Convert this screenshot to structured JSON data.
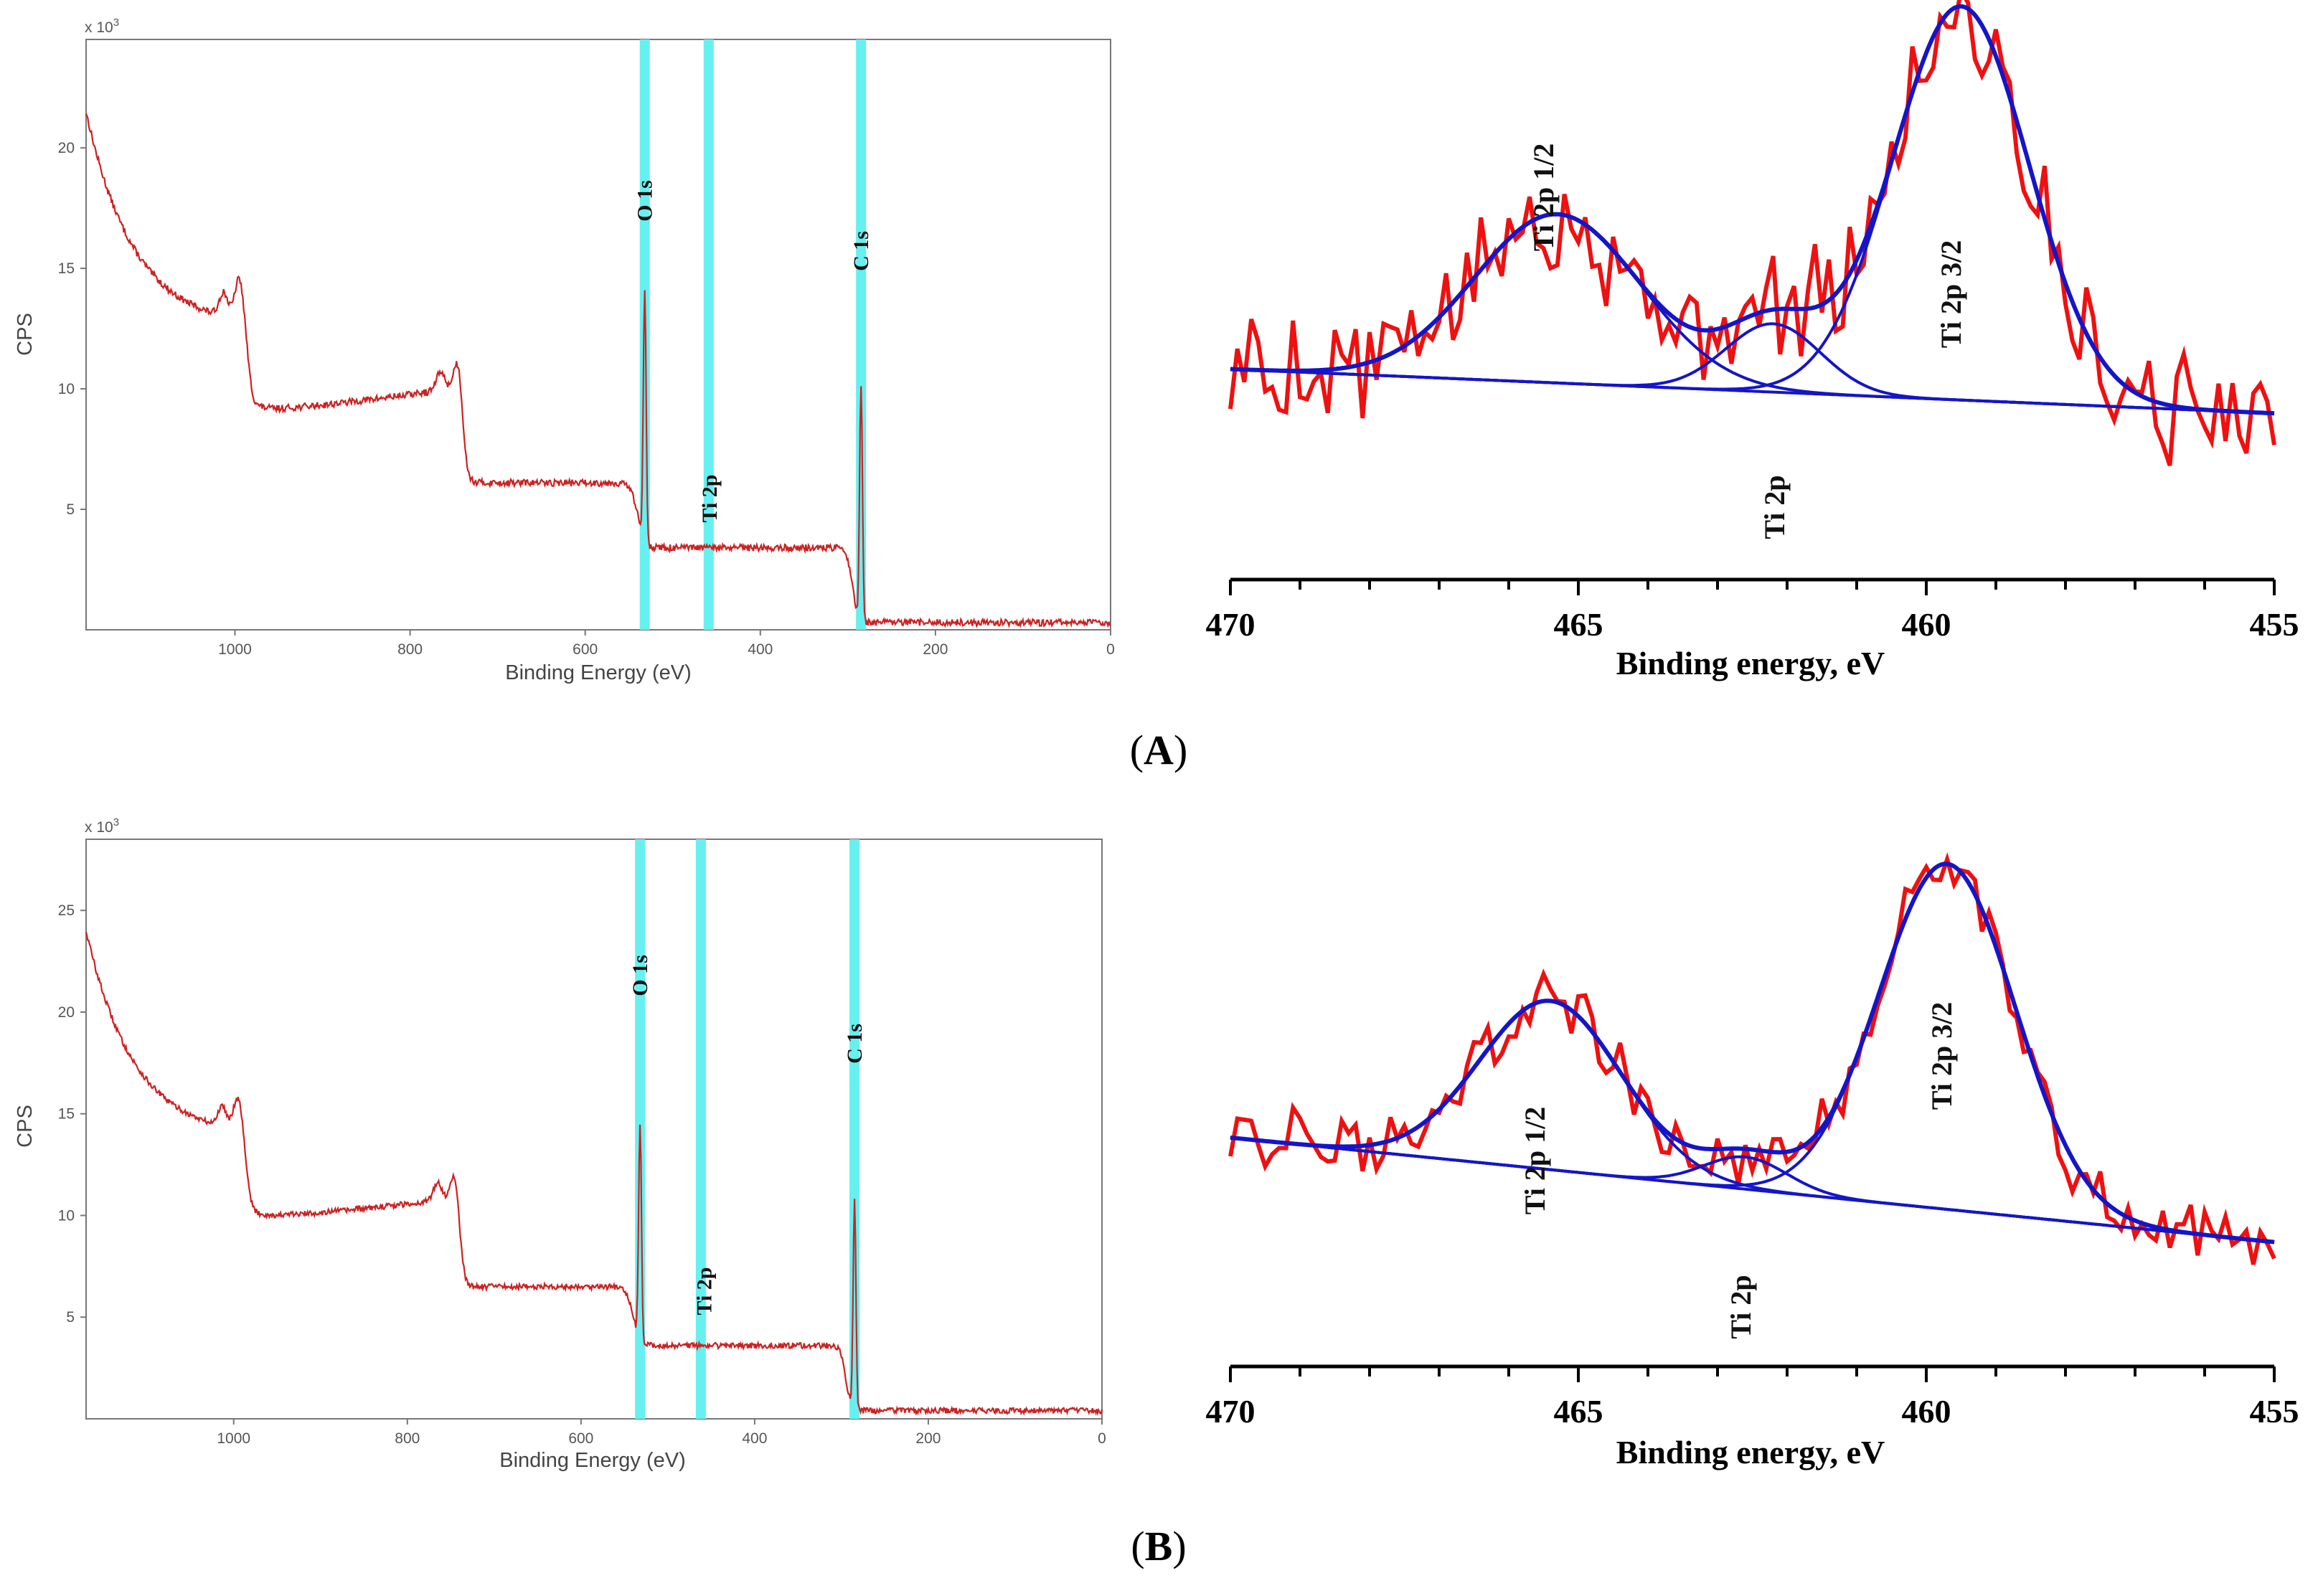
{
  "figure": {
    "panels": [
      {
        "letter": "A",
        "survey": {
          "type": "line",
          "ylabel": "CPS",
          "xlabel": "Binding Energy (eV)",
          "y_multiplier": "x 10",
          "y_multiplier_exp": "3",
          "xlim": [
            1170,
            0
          ],
          "ylim": [
            0,
            24.5
          ],
          "x_ticks": [
            "1000",
            "800",
            "600",
            "400",
            "200",
            "0"
          ],
          "x_tick_values": [
            1000,
            800,
            600,
            400,
            200,
            0
          ],
          "y_ticks": [
            "5",
            "10",
            "15",
            "20"
          ],
          "y_tick_values": [
            5,
            10,
            15,
            20
          ],
          "series_color": "#cc2222",
          "highlight_color": "#66f0f0",
          "highlights_ev": [
            532,
            459,
            285
          ],
          "peak_labels": [
            {
              "text": "O 1s",
              "ev": 532
            },
            {
              "text": "Ti 2p",
              "ev": 458
            },
            {
              "text": "C 1s",
              "ev": 285
            }
          ],
          "profile": {
            "start_level": 21.5,
            "plateau1_level": 12.5,
            "step1_ev": 985,
            "level2": 9.0,
            "rise_ev": 770,
            "step2_ev": 740,
            "level3": 6.1,
            "step3_ev": 560,
            "level4": 3.4,
            "step4_ev": 295,
            "level5": 0.3,
            "peaks": [
              {
                "ev": 1013,
                "h": 1.0
              },
              {
                "ev": 995,
                "h": 1.8
              },
              {
                "ev": 765,
                "h": 0.8
              },
              {
                "ev": 745,
                "h": 1.6
              },
              {
                "ev": 532,
                "h": 10.5
              },
              {
                "ev": 285,
                "h": 9.8
              }
            ]
          }
        },
        "highres": {
          "type": "line",
          "xlabel": "Binding energy, eV",
          "xlim": [
            470,
            455
          ],
          "x_ticks": [
            "470",
            "465",
            "460",
            "455"
          ],
          "x_tick_values": [
            470,
            465,
            460,
            455
          ],
          "measured_color": "#ee1111",
          "fit_color": "#1515c8",
          "peak_labels": [
            "Ti 2p 1/2",
            "Ti 2p",
            "Ti 2p 3/2"
          ],
          "components": [
            {
              "name": "Ti 2p 1/2",
              "center_ev": 465.3,
              "height": 0.42,
              "fwhm": 2.8
            },
            {
              "name": "Ti 2p",
              "center_ev": 462.2,
              "height": 0.17,
              "fwhm": 1.6
            },
            {
              "name": "Ti 2p 3/2",
              "center_ev": 459.5,
              "height": 0.98,
              "fwhm": 2.3
            }
          ],
          "baseline": {
            "left": 0.34,
            "right": 0.23
          },
          "noise_amplitude": 0.12
        }
      },
      {
        "letter": "B",
        "survey": {
          "type": "line",
          "ylabel": "CPS",
          "xlabel": "Binding Energy (eV)",
          "y_multiplier": "x 10",
          "y_multiplier_exp": "3",
          "xlim": [
            1170,
            0
          ],
          "ylim": [
            0,
            28.5
          ],
          "x_ticks": [
            "1000",
            "800",
            "600",
            "400",
            "200",
            "0"
          ],
          "x_tick_values": [
            1000,
            800,
            600,
            400,
            200,
            0
          ],
          "y_ticks": [
            "5",
            "10",
            "15",
            "20",
            "25"
          ],
          "y_tick_values": [
            5,
            10,
            15,
            20,
            25
          ],
          "series_color": "#cc2222",
          "highlight_color": "#66f0f0",
          "highlights_ev": [
            532,
            462,
            285
          ],
          "peak_labels": [
            {
              "text": "O 1s",
              "ev": 532
            },
            {
              "text": "Ti 2p",
              "ev": 458
            },
            {
              "text": "C 1s",
              "ev": 285
            }
          ],
          "profile": {
            "start_level": 24.0,
            "plateau1_level": 13.8,
            "step1_ev": 985,
            "level2": 9.8,
            "rise_ev": 770,
            "step2_ev": 740,
            "level3": 6.5,
            "step3_ev": 560,
            "level4": 3.6,
            "step4_ev": 295,
            "level5": 0.4,
            "peaks": [
              {
                "ev": 1013,
                "h": 1.0
              },
              {
                "ev": 995,
                "h": 1.7
              },
              {
                "ev": 765,
                "h": 0.9
              },
              {
                "ev": 745,
                "h": 1.7
              },
              {
                "ev": 532,
                "h": 10.6
              },
              {
                "ev": 285,
                "h": 10.2
              }
            ]
          }
        },
        "highres": {
          "type": "line",
          "xlabel": "Binding energy, eV",
          "xlim": [
            470,
            455
          ],
          "x_ticks": [
            "470",
            "465",
            "460",
            "455"
          ],
          "x_tick_values": [
            470,
            465,
            460,
            455
          ],
          "measured_color": "#ee1111",
          "fit_color": "#1515c8",
          "peak_labels": [
            "Ti 2p 1/2",
            "Ti 2p",
            "Ti 2p 3/2"
          ],
          "components": [
            {
              "name": "Ti 2p 1/2",
              "center_ev": 465.4,
              "height": 0.42,
              "fwhm": 2.4
            },
            {
              "name": "Ti 2p",
              "center_ev": 462.6,
              "height": 0.08,
              "fwhm": 1.4
            },
            {
              "name": "Ti 2p 3/2",
              "center_ev": 459.7,
              "height": 0.86,
              "fwhm": 2.3
            }
          ],
          "baseline": {
            "left": 0.4,
            "right": 0.14
          },
          "noise_amplitude": 0.07
        }
      }
    ]
  }
}
